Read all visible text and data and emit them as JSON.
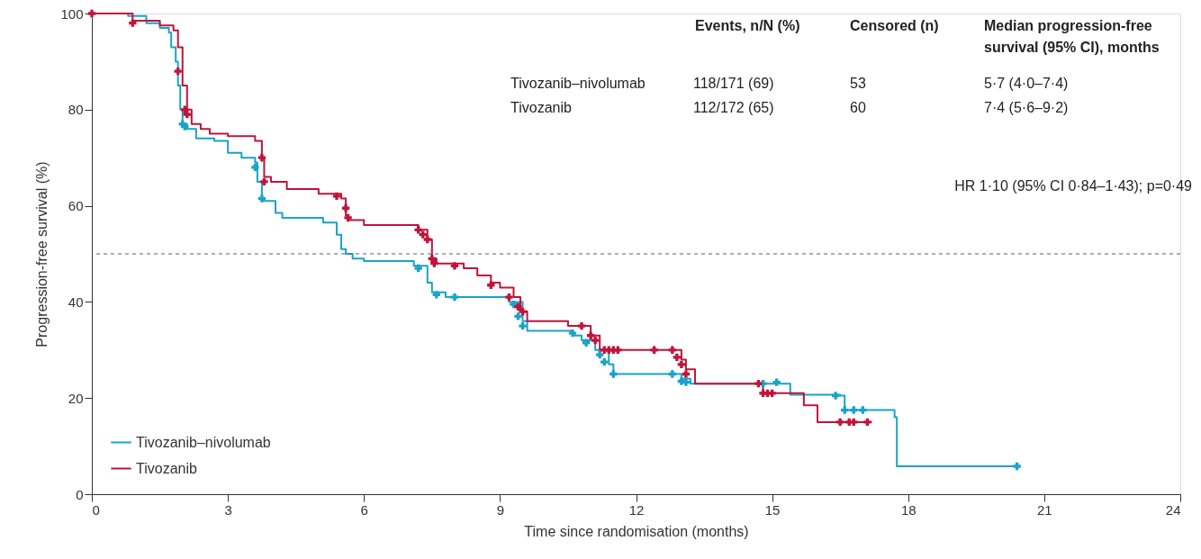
{
  "chart_data": {
    "type": "step",
    "xlabel": "Time since randomisation (months)",
    "ylabel": "Progression-free survival (%)",
    "xlim": [
      0,
      24
    ],
    "xticks": [
      0,
      3,
      6,
      9,
      12,
      15,
      18,
      21,
      24
    ],
    "ylim": [
      0,
      100
    ],
    "yticks": [
      0,
      20,
      40,
      60,
      80,
      100
    ],
    "grid": false,
    "legend": "bottom left",
    "line_style": "solid",
    "series": [
      {
        "name": "Tivozanib–nivolumab",
        "color": "#1aa3c8",
        "marker": "none",
        "x": [
          0,
          0.8,
          1.2,
          1.5,
          1.7,
          1.75,
          1.85,
          1.9,
          1.95,
          2.0,
          2.1,
          2.3,
          2.7,
          3.0,
          3.3,
          3.6,
          3.65,
          3.75,
          4.05,
          4.2,
          5.1,
          5.4,
          5.5,
          5.6,
          5.75,
          6.0,
          7.1,
          7.4,
          7.5,
          7.8,
          9.2,
          9.5,
          9.6,
          10.6,
          10.8,
          11.1,
          11.4,
          11.5,
          12.8,
          13.0,
          13.2,
          15.4,
          16.5,
          16.6,
          17.7,
          17.75,
          20.4
        ],
        "values": [
          100,
          99.5,
          98,
          97,
          96,
          93,
          90,
          85,
          80,
          77,
          76,
          74,
          73.5,
          71,
          70,
          69,
          65,
          61,
          58.5,
          57.5,
          56.5,
          54,
          51,
          50,
          49,
          48.5,
          47.5,
          44,
          42,
          41,
          40,
          36,
          34,
          33,
          32,
          30,
          27,
          25,
          25,
          24,
          23,
          20.7,
          20.5,
          17.5,
          16,
          5.8,
          5.8
        ]
      },
      {
        "name": "Tivozanib",
        "color": "#c0143c",
        "marker": "none",
        "x": [
          0,
          0.9,
          1.5,
          1.8,
          1.9,
          2.0,
          2.1,
          2.2,
          2.4,
          2.6,
          3.0,
          3.6,
          3.75,
          3.8,
          3.95,
          4.3,
          5.0,
          5.5,
          5.6,
          5.65,
          6.0,
          7.2,
          7.4,
          7.5,
          7.6,
          8.2,
          8.5,
          8.8,
          9.0,
          9.3,
          9.45,
          9.6,
          10.5,
          11.0,
          11.2,
          12.9,
          13.0,
          13.1,
          13.3,
          14.7,
          14.8,
          15.4,
          15.7,
          16.0,
          17.2
        ],
        "values": [
          100,
          98.5,
          97.5,
          96.5,
          93,
          85,
          80,
          77,
          76,
          75,
          74.5,
          73.5,
          70,
          66,
          65,
          63.5,
          62.5,
          61.5,
          58,
          57,
          56,
          55,
          53,
          49,
          48,
          47,
          45.5,
          44,
          43,
          41,
          38,
          36,
          35,
          33,
          30,
          30,
          28,
          26,
          23,
          23,
          21,
          21,
          18.5,
          15,
          15
        ]
      },
      {
        "type": "scatter",
        "color": "#1aa3c8",
        "marker": "cross",
        "x": [
          2.0,
          2.05,
          3.6,
          3.75,
          7.2,
          7.6,
          8.0,
          9.3,
          9.4,
          9.5,
          10.6,
          10.9,
          11.2,
          11.3,
          11.5,
          12.8,
          13.0,
          13.1,
          14.8,
          15.1,
          16.4,
          16.6,
          16.8,
          17.0,
          20.4
        ],
        "values": [
          77,
          76.5,
          68,
          61.5,
          47,
          41.5,
          41,
          39.5,
          37,
          35,
          33.5,
          31.5,
          29,
          27.5,
          25,
          25,
          23.5,
          23.3,
          23,
          23.3,
          20.5,
          17.5,
          17.5,
          17.5,
          5.8
        ]
      },
      {
        "type": "scatter",
        "color": "#c0143c",
        "marker": "cross",
        "x": [
          0,
          0.9,
          1.9,
          2.05,
          2.1,
          3.75,
          3.8,
          5.4,
          5.6,
          5.65,
          7.2,
          7.3,
          7.4,
          7.5,
          7.55,
          8.0,
          8.8,
          9.2,
          9.4,
          9.5,
          10.8,
          11.0,
          11.1,
          11.3,
          11.4,
          11.5,
          11.6,
          12.4,
          12.8,
          12.9,
          13.0,
          13.1,
          14.7,
          14.8,
          14.9,
          15.0,
          16.5,
          16.7,
          16.8,
          17.1
        ],
        "values": [
          100,
          98,
          88,
          80,
          79,
          70,
          65,
          62,
          59.5,
          57.5,
          55,
          54,
          53,
          49,
          48,
          47.5,
          43.5,
          41,
          39,
          38,
          35,
          33,
          32,
          30,
          30,
          30,
          30,
          30,
          30,
          28.5,
          27,
          25,
          23,
          21,
          21,
          21,
          15,
          15,
          15,
          15
        ]
      }
    ],
    "ref_lines": [
      {
        "axis": "y",
        "value": 50,
        "color": "#4a6470",
        "line_style": "dashed"
      }
    ],
    "annotations": [
      "Events, n/N (%)",
      "Censored (n)",
      "Median progression-free\nsurvival (95% CI), months",
      "Tivozanib–nivolumab",
      "118/171 (69)",
      "53",
      "5·7 (4·0–7·4)",
      "Tivozanib",
      "112/172 (65)",
      "60",
      "7·4 (5·6–9·2)",
      "HR 1·10 (95% CI 0·84–1·43); p=0·49"
    ]
  }
}
